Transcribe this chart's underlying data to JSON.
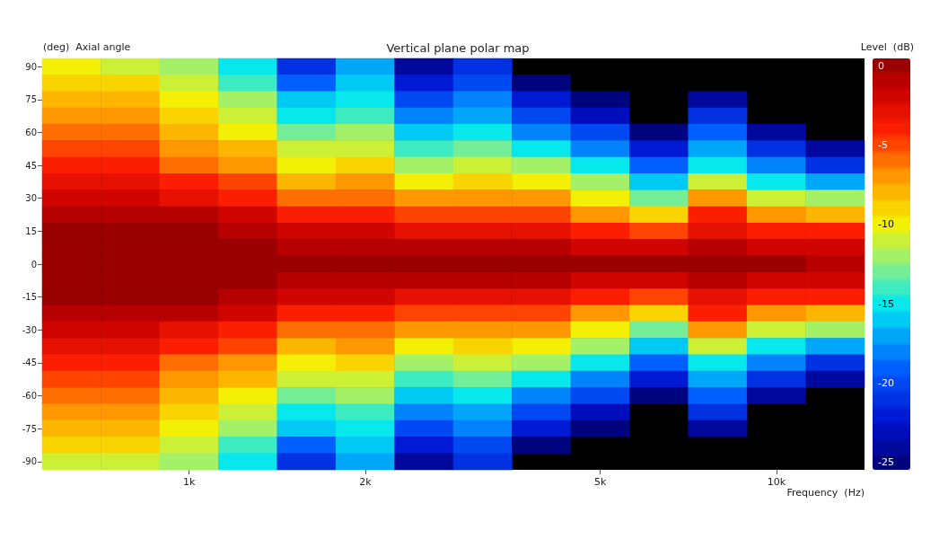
{
  "chart_data": {
    "type": "heatmap",
    "title": "Vertical plane polar map",
    "xlabel": "Frequency  (Hz)",
    "ylabel": "(deg)  Axial angle",
    "clabel": "Level  (dB)",
    "categories": [
      null,
      null,
      "1k",
      null,
      null,
      "2k",
      null,
      null,
      null,
      "5k",
      null,
      null,
      "10k",
      null
    ],
    "y_categories": [
      "90",
      null,
      "75",
      null,
      "60",
      null,
      "45",
      null,
      "30",
      null,
      "15",
      null,
      "0",
      null,
      "-15",
      null,
      "-30",
      null,
      "-45",
      null,
      "-60",
      null,
      "-75",
      null,
      "-90"
    ],
    "cells": [
      [
        -10,
        -11,
        -12,
        -15,
        -21,
        -17,
        -24,
        -21,
        null,
        null,
        null,
        null,
        null,
        null
      ],
      [
        -9,
        -9,
        -11,
        -14,
        -19,
        -16,
        -22,
        -20,
        -25,
        null,
        null,
        null,
        null,
        null
      ],
      [
        -8,
        -8,
        -10,
        -12,
        -16,
        -15,
        -20,
        -18,
        -22,
        -25,
        null,
        -24,
        null,
        null
      ],
      [
        -7,
        -7,
        -9,
        -11,
        -15,
        -14,
        -18,
        -17,
        -20,
        -23,
        null,
        -21,
        null,
        null
      ],
      [
        -6,
        -6,
        -8,
        -10,
        -13,
        -12,
        -16,
        -15,
        -18,
        -20,
        -25,
        -19,
        -24,
        null
      ],
      [
        -5,
        -5,
        -7,
        -8,
        -11,
        -11,
        -14,
        -13,
        -15,
        -18,
        -22,
        -17,
        -21,
        -24
      ],
      [
        -4,
        -4,
        -6,
        -7,
        -10,
        -9,
        -12,
        -11,
        -12,
        -15,
        -19,
        -15,
        -18,
        -21
      ],
      [
        -3,
        -3,
        -4,
        -5,
        -8,
        -7,
        -10,
        -9,
        -10,
        -12,
        -16,
        -11,
        -15,
        -17
      ],
      [
        -2,
        -2,
        -3,
        -4,
        -6,
        -6,
        -7,
        -7,
        -7,
        -10,
        -13,
        -7,
        -11,
        -12
      ],
      [
        -1,
        -1,
        -1,
        -2,
        -4,
        -4,
        -5,
        -5,
        -5,
        -7,
        -9,
        -4,
        -7,
        -8
      ],
      [
        0,
        0,
        0,
        -1,
        -2,
        -2,
        -3,
        -3,
        -3,
        -4,
        -5,
        -3,
        -4,
        -4
      ],
      [
        0,
        0,
        0,
        0,
        -1,
        -1,
        -1,
        -1,
        -1,
        -2,
        -2,
        -1,
        -2,
        -2
      ],
      [
        0,
        0,
        0,
        0,
        0,
        0,
        0,
        0,
        0,
        0,
        0,
        0,
        0,
        -1
      ],
      [
        0,
        0,
        0,
        0,
        -1,
        -1,
        -1,
        -1,
        -1,
        -2,
        -2,
        -1,
        -2,
        -2
      ],
      [
        0,
        0,
        0,
        -1,
        -2,
        -2,
        -3,
        -3,
        -3,
        -4,
        -5,
        -3,
        -4,
        -4
      ],
      [
        -1,
        -1,
        -1,
        -2,
        -4,
        -4,
        -5,
        -5,
        -5,
        -7,
        -9,
        -4,
        -7,
        -8
      ],
      [
        -2,
        -2,
        -3,
        -4,
        -6,
        -6,
        -7,
        -7,
        -7,
        -10,
        -13,
        -7,
        -11,
        -12
      ],
      [
        -3,
        -3,
        -4,
        -5,
        -8,
        -7,
        -10,
        -9,
        -10,
        -12,
        -16,
        -11,
        -15,
        -17
      ],
      [
        -4,
        -4,
        -6,
        -7,
        -10,
        -9,
        -12,
        -11,
        -12,
        -15,
        -19,
        -15,
        -18,
        -21
      ],
      [
        -5,
        -5,
        -7,
        -8,
        -11,
        -11,
        -14,
        -13,
        -15,
        -18,
        -22,
        -17,
        -21,
        -24
      ],
      [
        -6,
        -6,
        -8,
        -10,
        -13,
        -12,
        -16,
        -15,
        -18,
        -20,
        -25,
        -19,
        -24,
        null
      ],
      [
        -7,
        -7,
        -9,
        -11,
        -15,
        -14,
        -18,
        -17,
        -20,
        -23,
        null,
        -21,
        null,
        null
      ],
      [
        -8,
        -8,
        -10,
        -12,
        -16,
        -15,
        -20,
        -18,
        -22,
        -25,
        null,
        -24,
        null,
        null
      ],
      [
        -9,
        -9,
        -11,
        -14,
        -19,
        -16,
        -22,
        -20,
        -25,
        null,
        null,
        null,
        null,
        null
      ],
      [
        -11,
        -11,
        -12,
        -15,
        -21,
        -17,
        -24,
        -21,
        null,
        null,
        null,
        null,
        null,
        null
      ]
    ],
    "clim": [
      -25.5,
      0.5
    ],
    "cticks": [
      0,
      -5,
      -10,
      -15,
      -20,
      -25
    ]
  }
}
